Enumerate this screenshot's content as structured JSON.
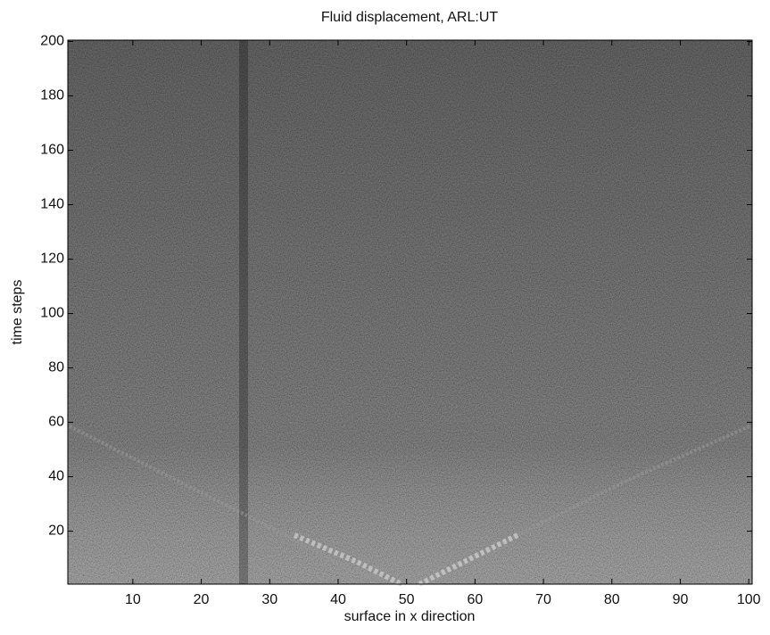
{
  "chart_data": {
    "type": "image",
    "title": "Fluid displacement, ARL:UT",
    "x_label": "surface in x direction",
    "y_label": "time steps",
    "xlim": [
      0.5,
      100.5
    ],
    "ylim": [
      0.5,
      200.5
    ],
    "xticks": [
      10,
      20,
      30,
      40,
      50,
      60,
      70,
      80,
      90,
      100
    ],
    "yticks": [
      20,
      40,
      60,
      80,
      100,
      120,
      140,
      160,
      180,
      200
    ]
  }
}
